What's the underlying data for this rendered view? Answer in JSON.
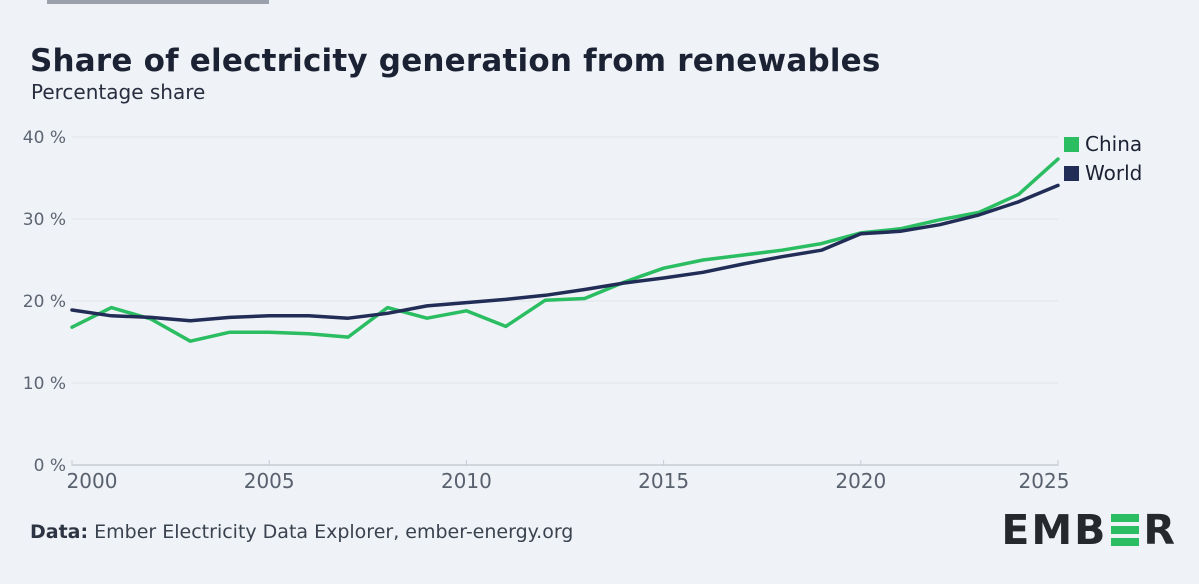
{
  "header": {
    "title": "Share of electricity generation from renewables",
    "subtitle": "Percentage share"
  },
  "legend": {
    "items": [
      {
        "label": "China",
        "color": "#2abd62"
      },
      {
        "label": "World",
        "color": "#212d56"
      }
    ]
  },
  "footer": {
    "source_label": "Data:",
    "source_text": " Ember Electricity Data Explorer, ember-energy.org",
    "logo_prefix": "EMB",
    "logo_suffix": "R",
    "logo_accent_color": "#2abd62"
  },
  "colors": {
    "background": "#eff2f6",
    "china_green": "#2abd62",
    "world_navy": "#212d56",
    "grid": "#e1e4ea",
    "axis": "#c7ccd3"
  },
  "chart_data": {
    "type": "line",
    "title": "Share of electricity generation from renewables",
    "ylabel": "Percentage share",
    "grid": true,
    "legend_position": "top-right",
    "xlim": [
      2000,
      2025
    ],
    "ylim": [
      0,
      40
    ],
    "x": [
      2000,
      2001,
      2002,
      2003,
      2004,
      2005,
      2006,
      2007,
      2008,
      2009,
      2010,
      2011,
      2012,
      2013,
      2014,
      2015,
      2016,
      2017,
      2018,
      2019,
      2020,
      2021,
      2022,
      2023,
      2024,
      2025
    ],
    "series": [
      {
        "name": "China",
        "color": "#2abd62",
        "values": [
          16.8,
          19.2,
          17.8,
          15.1,
          16.2,
          16.2,
          16.0,
          15.6,
          19.2,
          17.9,
          18.8,
          16.9,
          20.1,
          20.3,
          22.3,
          24.0,
          25.0,
          25.6,
          26.2,
          27.0,
          28.3,
          28.8,
          29.9,
          30.8,
          33.0,
          37.3
        ]
      },
      {
        "name": "World",
        "color": "#212d56",
        "values": [
          18.9,
          18.2,
          18.0,
          17.6,
          18.0,
          18.2,
          18.2,
          17.9,
          18.5,
          19.4,
          19.8,
          20.2,
          20.7,
          21.4,
          22.2,
          22.8,
          23.5,
          24.5,
          25.4,
          26.2,
          28.2,
          28.5,
          29.3,
          30.5,
          32.1,
          34.1
        ]
      }
    ],
    "yticks": [
      {
        "value": 0,
        "label": "0 %"
      },
      {
        "value": 10,
        "label": "10 %"
      },
      {
        "value": 20,
        "label": "20 %"
      },
      {
        "value": 30,
        "label": "30 %"
      },
      {
        "value": 40,
        "label": "40 %"
      }
    ],
    "xticks": [
      {
        "value": 2000,
        "label": "2000"
      },
      {
        "value": 2005,
        "label": "2005"
      },
      {
        "value": 2010,
        "label": "2010"
      },
      {
        "value": 2015,
        "label": "2015"
      },
      {
        "value": 2020,
        "label": "2020"
      },
      {
        "value": 2025,
        "label": "2025"
      }
    ]
  }
}
